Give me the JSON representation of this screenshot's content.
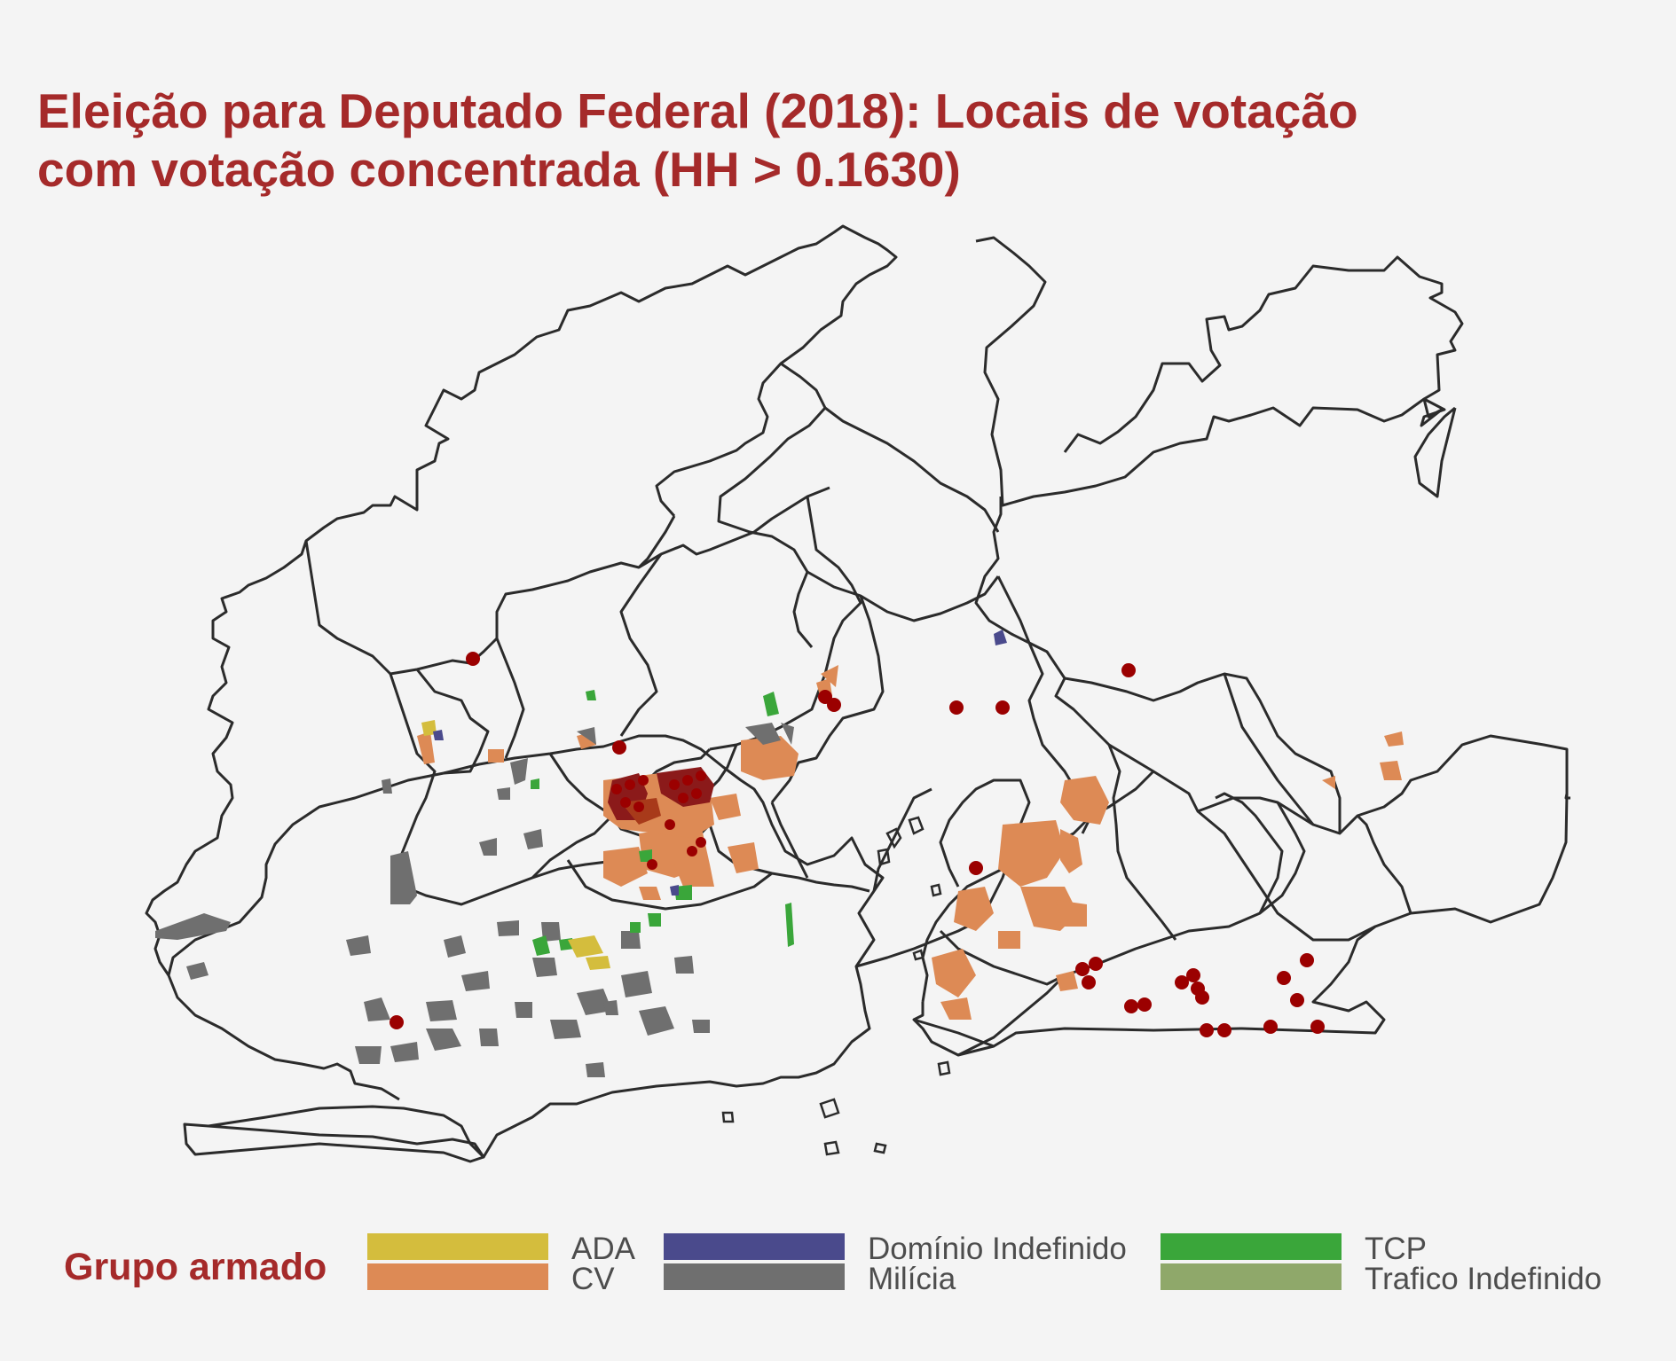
{
  "title_line1": "Eleição para Deputado Federal (2018): Locais de votação",
  "title_line2": "com votação concentrada (HH > 0.1630)",
  "legend": {
    "title": "Grupo armado",
    "items": [
      {
        "label": "ADA",
        "color": "#d4bd3d"
      },
      {
        "label": "CV",
        "color": "#dd8a55"
      },
      {
        "label": "Domínio Indefinido",
        "color": "#4a4a8c"
      },
      {
        "label": "Milícia",
        "color": "#6f6f6f"
      },
      {
        "label": "TCP",
        "color": "#3aa63a"
      },
      {
        "label": "Trafico Indefinido",
        "color": "#8fa86a"
      }
    ]
  },
  "colors": {
    "title": "#a52a2a",
    "background": "#f4f4f4",
    "boundary": "#2b2b2b",
    "marker": "#9b0000"
  }
}
